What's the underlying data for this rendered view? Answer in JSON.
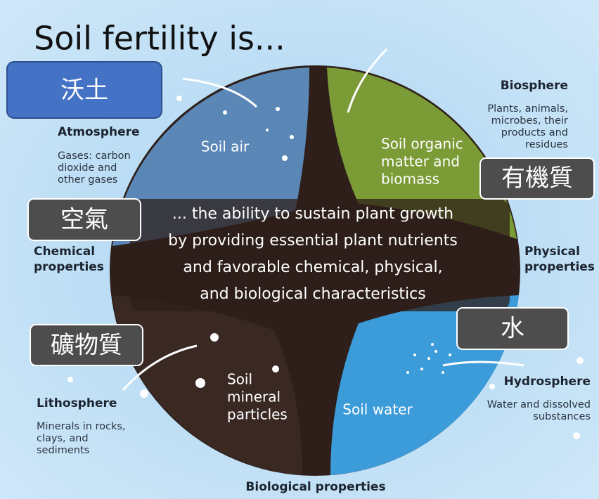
{
  "title": "Soil fertility is...",
  "labels": {
    "fertile_soil": "沃土",
    "air": "空氣",
    "organic_matter": "有機質",
    "water": "水",
    "minerals": "礦物質"
  },
  "atmosphere": {
    "heading": "Atmosphere",
    "description": [
      "Gases: carbon",
      "dioxide and",
      "other gases"
    ]
  },
  "biosphere": {
    "heading": "Biosphere",
    "description": [
      "Plants, animals,",
      "microbes, their",
      "products and",
      "residues"
    ]
  },
  "hydrosphere": {
    "heading": "Hydrosphere",
    "description": [
      "Water and dissolved",
      "substances"
    ]
  },
  "lithosphere": {
    "heading": "Lithosphere",
    "description": [
      "Minerals in rocks,",
      "clays, and",
      "sediments"
    ]
  },
  "quadrants": {
    "soil_air": "Soil air",
    "organic": [
      "Soil organic",
      "matter and",
      "biomass"
    ],
    "mineral": [
      "Soil",
      "mineral",
      "particles"
    ],
    "soil_water": "Soil water"
  },
  "center": [
    "... the ability to sustain plant growth",
    "by providing essential plant nutrients",
    "and favorable chemical, physical,",
    "and biological characteristics"
  ],
  "properties": {
    "chemical": [
      "Chemical",
      "properties"
    ],
    "physical": [
      "Physical",
      "properties"
    ],
    "biological": "Biological properties"
  }
}
